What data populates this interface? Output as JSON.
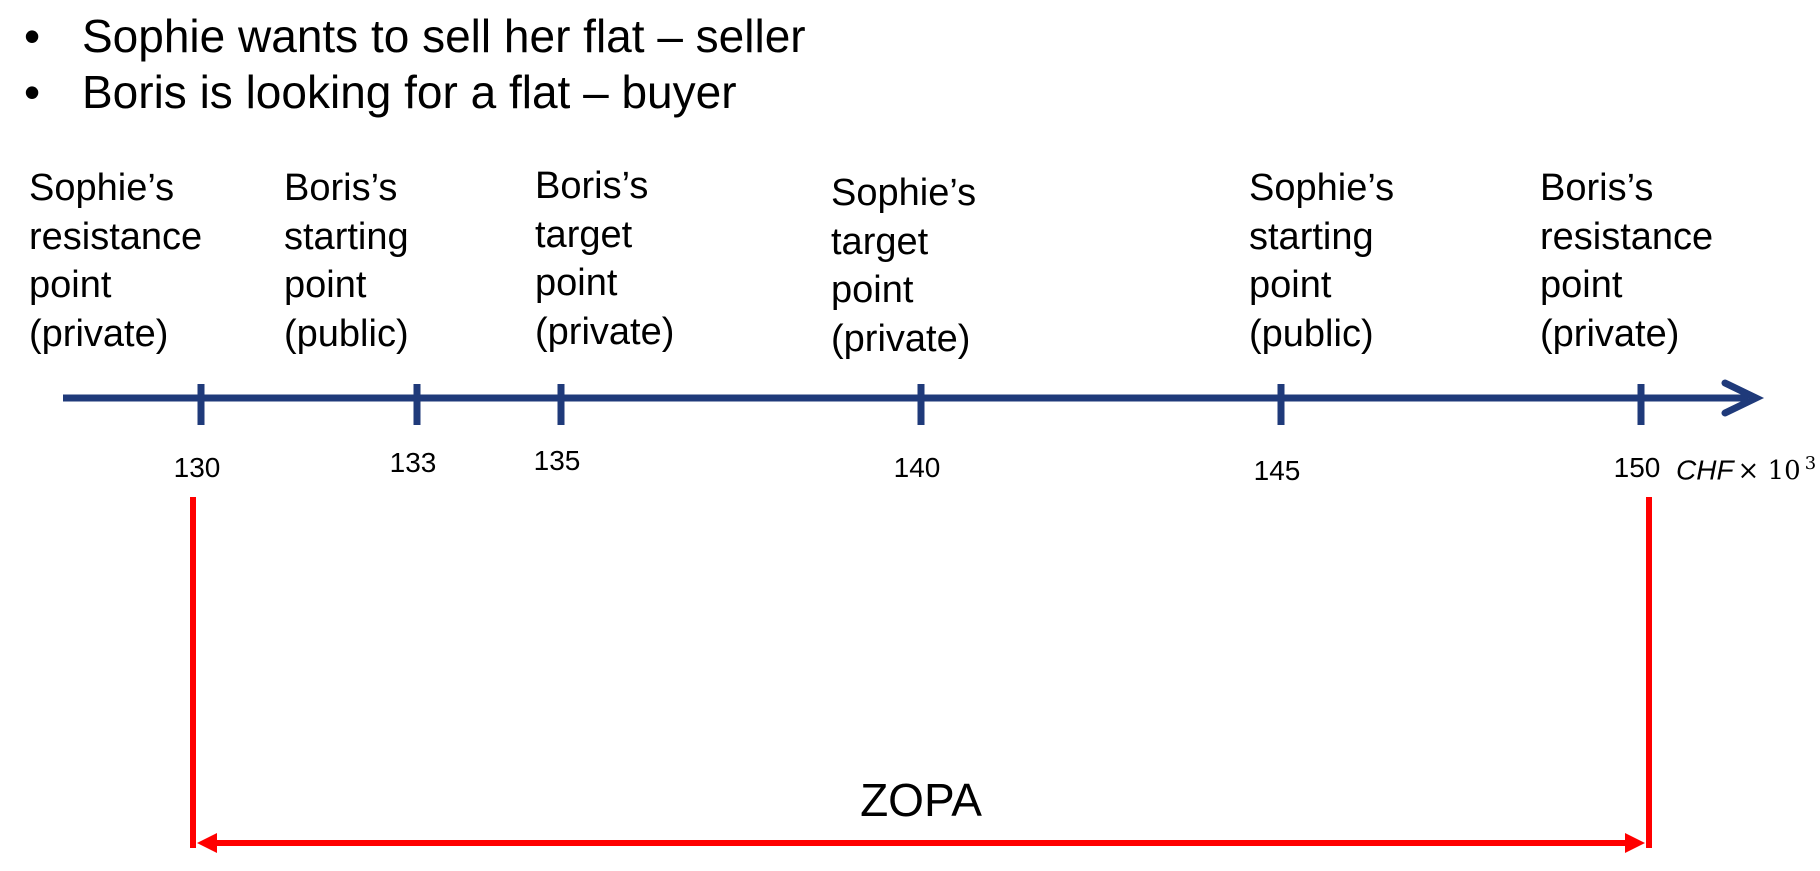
{
  "bullets": [
    "Sophie wants to sell her flat – seller",
    "Boris is looking for a flat – buyer"
  ],
  "bullet_glyph": "•",
  "axis": {
    "unit_text": "CHF",
    "multiplier": "× 10",
    "exponent": "3",
    "min": 130,
    "max": 150,
    "color": "#1f3a7a"
  },
  "points": [
    {
      "value": 130,
      "tick_label": "130",
      "label": [
        "Sophie’s",
        "resistance",
        "point",
        "(private)"
      ]
    },
    {
      "value": 133,
      "tick_label": "133",
      "label": [
        "Boris’s",
        "starting",
        "point",
        "(public)"
      ]
    },
    {
      "value": 135,
      "tick_label": "135",
      "label": [
        "Boris’s",
        "target",
        "point",
        "(private)"
      ]
    },
    {
      "value": 140,
      "tick_label": "140",
      "label": [
        "Sophie’s",
        "target",
        "point",
        "(private)"
      ]
    },
    {
      "value": 145,
      "tick_label": "145",
      "label": [
        "Sophie’s",
        "starting",
        "point",
        "(public)"
      ]
    },
    {
      "value": 150,
      "tick_label": "150",
      "label": [
        "Boris’s",
        "resistance",
        "point",
        "(private)"
      ]
    }
  ],
  "zopa": {
    "label": "ZOPA",
    "from": 130,
    "to": 150,
    "color": "#ff0000"
  }
}
